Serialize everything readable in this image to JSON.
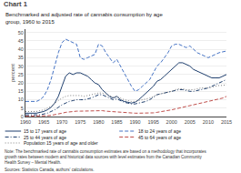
{
  "chart_data": {
    "type": "line",
    "title": "Chart 1",
    "subtitle": "Benchmarked and adjusted rate of cannabis consumption by age\ngroup, 1960 to 2015",
    "ylabel": "percent",
    "annotations": [
      "Note: The benchmarked rate of cannabis consumption estimates are based on a methodology that incorporates\ngrowth rates between modern and historical data sources with level estimates from the Canadian Community\nHealth Survey – Mental Health.",
      "Sources: Statistics Canada, authors' calculations."
    ],
    "x": [
      1960,
      1961,
      1962,
      1963,
      1964,
      1965,
      1966,
      1967,
      1968,
      1969,
      1970,
      1971,
      1972,
      1973,
      1974,
      1975,
      1976,
      1977,
      1978,
      1979,
      1980,
      1981,
      1982,
      1983,
      1984,
      1985,
      1986,
      1987,
      1988,
      1989,
      1990,
      1991,
      1992,
      1993,
      1994,
      1995,
      1996,
      1997,
      1998,
      1999,
      2000,
      2001,
      2002,
      2003,
      2004,
      2005,
      2006,
      2007,
      2008,
      2009,
      2010,
      2011,
      2012,
      2013,
      2014,
      2015
    ],
    "series": [
      {
        "name": "15 to 17 years of age",
        "color": "#1f3f6e",
        "line_style": "solid",
        "values": [
          2.0,
          2.0,
          2.0,
          2.0,
          2.5,
          3.0,
          4.0,
          5.5,
          8.0,
          12.0,
          18.0,
          24.0,
          26.0,
          25.0,
          26.0,
          26.0,
          25.0,
          24.0,
          22.0,
          20.0,
          19.0,
          16.0,
          14.0,
          12.0,
          11.0,
          12.0,
          10.0,
          9.0,
          8.5,
          8.0,
          8.5,
          10.0,
          12.0,
          14.0,
          16.0,
          18.0,
          21.0,
          22.0,
          24.0,
          26.0,
          28.0,
          30.0,
          32.0,
          32.0,
          31.0,
          30.0,
          28.0,
          27.0,
          26.0,
          25.0,
          24.0,
          23.0,
          23.0,
          23.0,
          24.0,
          25.0
        ]
      },
      {
        "name": "18 to 24 years of age",
        "color": "#4472c4",
        "line_style": "dashed",
        "values": [
          9.0,
          9.0,
          9.0,
          9.0,
          10.0,
          12.0,
          16.0,
          22.0,
          30.0,
          38.0,
          44.0,
          46.0,
          45.0,
          44.0,
          43.0,
          35.0,
          34.0,
          35.0,
          36.0,
          37.0,
          43.0,
          42.0,
          38.0,
          35.0,
          32.0,
          34.0,
          30.0,
          26.0,
          22.0,
          18.0,
          15.0,
          16.0,
          18.0,
          20.0,
          22.0,
          26.0,
          30.0,
          32.0,
          35.0,
          38.0,
          42.0,
          43.0,
          43.0,
          42.0,
          41.0,
          42.0,
          40.0,
          38.0,
          37.0,
          36.0,
          35.0,
          36.0,
          37.0,
          38.0,
          38.5,
          39.0
        ]
      },
      {
        "name": "25 to 44 years of age",
        "color": "#1f3f6e",
        "line_style": "dashdot",
        "values": [
          1.0,
          1.0,
          1.0,
          1.0,
          1.0,
          1.5,
          2.0,
          3.0,
          4.0,
          5.5,
          7.0,
          8.0,
          9.0,
          9.5,
          10.0,
          10.0,
          10.0,
          10.5,
          11.0,
          12.0,
          13.0,
          13.0,
          12.0,
          11.0,
          10.0,
          10.5,
          9.5,
          8.5,
          8.0,
          7.5,
          7.5,
          8.0,
          8.5,
          9.0,
          10.0,
          11.5,
          13.0,
          13.5,
          14.0,
          14.5,
          15.0,
          15.5,
          16.0,
          16.0,
          15.5,
          15.0,
          15.0,
          15.5,
          16.0,
          16.5,
          17.0,
          18.0,
          19.0,
          20.0,
          21.0,
          22.0
        ]
      },
      {
        "name": "45 to 64 years of age",
        "color": "#c0504d",
        "line_style": "dashed",
        "values": [
          0.2,
          0.2,
          0.2,
          0.2,
          0.3,
          0.4,
          0.5,
          0.7,
          1.0,
          1.5,
          2.0,
          2.5,
          2.8,
          3.0,
          3.2,
          3.2,
          3.3,
          3.5,
          3.5,
          3.5,
          3.5,
          3.5,
          3.2,
          3.0,
          2.8,
          2.8,
          2.5,
          2.3,
          2.0,
          2.0,
          2.0,
          2.0,
          2.0,
          2.0,
          2.0,
          2.2,
          2.5,
          2.8,
          3.0,
          3.5,
          4.0,
          4.5,
          5.0,
          5.5,
          6.0,
          6.5,
          7.0,
          7.5,
          8.0,
          8.5,
          9.0,
          9.5,
          10.0,
          10.5,
          11.0,
          12.0
        ]
      },
      {
        "name": "Population 15 years of age and older",
        "color": "#7f7f7f",
        "line_style": "dotted",
        "values": [
          3.0,
          3.0,
          3.0,
          3.0,
          3.5,
          4.0,
          5.0,
          6.0,
          8.0,
          9.5,
          11.0,
          12.0,
          12.5,
          12.5,
          12.5,
          12.5,
          12.0,
          12.5,
          13.0,
          13.5,
          14.0,
          14.0,
          13.5,
          12.5,
          11.5,
          12.0,
          11.0,
          10.0,
          9.5,
          9.0,
          9.0,
          9.5,
          10.0,
          10.5,
          11.0,
          12.0,
          13.0,
          13.5,
          14.0,
          14.5,
          15.0,
          16.0,
          16.5,
          16.5,
          16.0,
          16.0,
          16.0,
          16.5,
          17.0,
          17.0,
          17.0,
          17.5,
          18.0,
          18.5,
          18.5,
          19.0
        ]
      }
    ],
    "xlim": [
      1960,
      2015
    ],
    "xticks": [
      1960,
      1965,
      1970,
      1975,
      1980,
      1985,
      1990,
      1995,
      2000,
      2005,
      2010,
      2015
    ],
    "ylim": [
      0,
      52
    ],
    "yticks": [
      0,
      5,
      10,
      15,
      20,
      25,
      30,
      35,
      40,
      45,
      50
    ],
    "grid": true,
    "legend": "bottom"
  }
}
